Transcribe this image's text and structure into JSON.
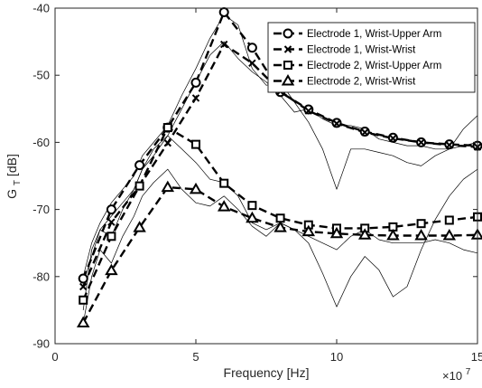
{
  "chart_data": {
    "type": "line",
    "title": "",
    "xlabel": "Frequency [Hz]",
    "ylabel_main": "G",
    "ylabel_sub": "T",
    "ylabel_unit": " [dB]",
    "x_exponent_base": "×10",
    "x_exponent_power": "7",
    "xlim": [
      0,
      15
    ],
    "ylim": [
      -90,
      -40
    ],
    "xticks": [
      0,
      5,
      10,
      15
    ],
    "xtick_labels": [
      "0",
      "5",
      "10",
      "15"
    ],
    "yticks": [
      -90,
      -80,
      -70,
      -60,
      -50,
      -40
    ],
    "ytick_labels": [
      "-90",
      "-80",
      "-70",
      "-60",
      "-50",
      "-40"
    ],
    "grid": false,
    "legend_position": "top-right",
    "series": [
      {
        "name": "Electrode 1, Wrist-Upper Arm",
        "marker": "circle",
        "x": [
          1,
          2,
          3,
          4,
          5,
          6,
          7,
          8,
          9,
          10,
          11,
          12,
          13,
          14,
          15
        ],
        "y": [
          -80.3,
          -70,
          -63.4,
          -57.8,
          -51.1,
          -40.6,
          -45.9,
          -52.5,
          -55.1,
          -57.1,
          -58.4,
          -59.3,
          -60,
          -60.3,
          -60.5
        ]
      },
      {
        "name": "Electrode 1, Wrist-Wrist",
        "marker": "x",
        "x": [
          1,
          2,
          3,
          4,
          5,
          6,
          7,
          8,
          9,
          10,
          11,
          12,
          13,
          14,
          15
        ],
        "y": [
          -81.5,
          -71.9,
          -66.5,
          -60.1,
          -53.4,
          -45.4,
          -48.2,
          -52.4,
          -55.3,
          -57.2,
          -58.5,
          -59.4,
          -60,
          -60.4,
          -60.7
        ]
      },
      {
        "name": "Electrode 2, Wrist-Upper Arm",
        "marker": "square",
        "x": [
          1,
          2,
          3,
          4,
          5,
          6,
          7,
          8,
          9,
          10,
          11,
          12,
          13,
          14,
          15
        ],
        "y": [
          -83.5,
          -74,
          -66.5,
          -57.8,
          -60.3,
          -66.1,
          -69.4,
          -71.3,
          -72.3,
          -72.8,
          -72.8,
          -72.6,
          -72.1,
          -71.6,
          -71.1
        ]
      },
      {
        "name": "Electrode 2, Wrist-Wrist",
        "marker": "triangle",
        "x": [
          1,
          2,
          3,
          4,
          5,
          6,
          7,
          8,
          9,
          10,
          11,
          12,
          13,
          14,
          15
        ],
        "y": [
          -86.9,
          -79.1,
          -72.7,
          -66.7,
          -67,
          -69.6,
          -71.3,
          -72.7,
          -73.3,
          -73.6,
          -73.8,
          -73.9,
          -73.9,
          -73.9,
          -73.8
        ]
      }
    ],
    "reference_traces": [
      {
        "x": [
          1,
          1.3,
          1.6,
          2,
          2.4,
          2.8,
          3.1,
          3.5,
          4,
          4.5,
          5,
          5.5,
          6,
          6.5,
          7,
          7.5,
          8,
          8.5,
          9,
          9.5,
          10,
          10.5,
          11,
          11.5,
          12,
          12.5,
          13,
          13.5,
          14,
          14.5,
          15
        ],
        "y": [
          -80,
          -75,
          -72,
          -69,
          -67,
          -65,
          -62,
          -60,
          -57.5,
          -53,
          -49,
          -44.5,
          -41,
          -42.5,
          -49,
          -51.5,
          -51,
          -54,
          -57,
          -61,
          -67,
          -61,
          -61,
          -61.5,
          -62,
          -63,
          -63.5,
          -62,
          -61,
          -58,
          -56
        ]
      },
      {
        "x": [
          1,
          1.3,
          1.6,
          2,
          2.4,
          2.8,
          3.1,
          3.5,
          4,
          4.5,
          5,
          5.5,
          6,
          6.5,
          7,
          7.5,
          8,
          8.5,
          9,
          9.5,
          10,
          10.5,
          11,
          11.5,
          12,
          12.5,
          13,
          13.5,
          14,
          14.5,
          15
        ],
        "y": [
          -81,
          -77,
          -73,
          -71,
          -69,
          -67,
          -64,
          -62,
          -59,
          -55,
          -51,
          -47,
          -45,
          -47.5,
          -49.5,
          -51,
          -53,
          -55.5,
          -55,
          -56.5,
          -57.5,
          -57.5,
          -58,
          -59.5,
          -60,
          -60.5,
          -60.5,
          -61,
          -61,
          -60.5,
          -60
        ]
      },
      {
        "x": [
          1,
          1.3,
          1.6,
          2,
          2.4,
          2.8,
          3.1,
          3.5,
          4,
          4.5,
          5,
          5.5,
          6,
          6.5,
          7,
          7.5,
          8,
          8.5,
          9,
          9.5,
          10,
          10.5,
          11,
          11.5,
          12,
          12.5,
          13,
          13.5,
          14,
          14.5,
          15
        ],
        "y": [
          -85,
          -76,
          -73,
          -74,
          -70,
          -67,
          -64,
          -61,
          -59,
          -61,
          -63,
          -65.5,
          -66,
          -68,
          -72,
          -73,
          -72,
          -73,
          -75,
          -79.5,
          -84.5,
          -80,
          -77,
          -79,
          -83,
          -81.5,
          -76,
          -71.5,
          -68,
          -65.5,
          -64
        ]
      },
      {
        "x": [
          1,
          1.3,
          1.6,
          2,
          2.4,
          2.8,
          3.1,
          3.5,
          4,
          4.5,
          5,
          5.5,
          6,
          6.5,
          7,
          7.5,
          8,
          8.5,
          9,
          9.5,
          10,
          10.5,
          11,
          11.5,
          12,
          12.5,
          13,
          13.5,
          14,
          14.5,
          15
        ],
        "y": [
          -87,
          -80,
          -76,
          -78,
          -74,
          -71,
          -68,
          -66,
          -64,
          -67,
          -69,
          -69.5,
          -68,
          -70,
          -72.5,
          -74,
          -72,
          -73,
          -74,
          -75,
          -76,
          -74,
          -73,
          -74.5,
          -75,
          -75,
          -75,
          -74.5,
          -75,
          -76,
          -76.5
        ]
      }
    ]
  }
}
